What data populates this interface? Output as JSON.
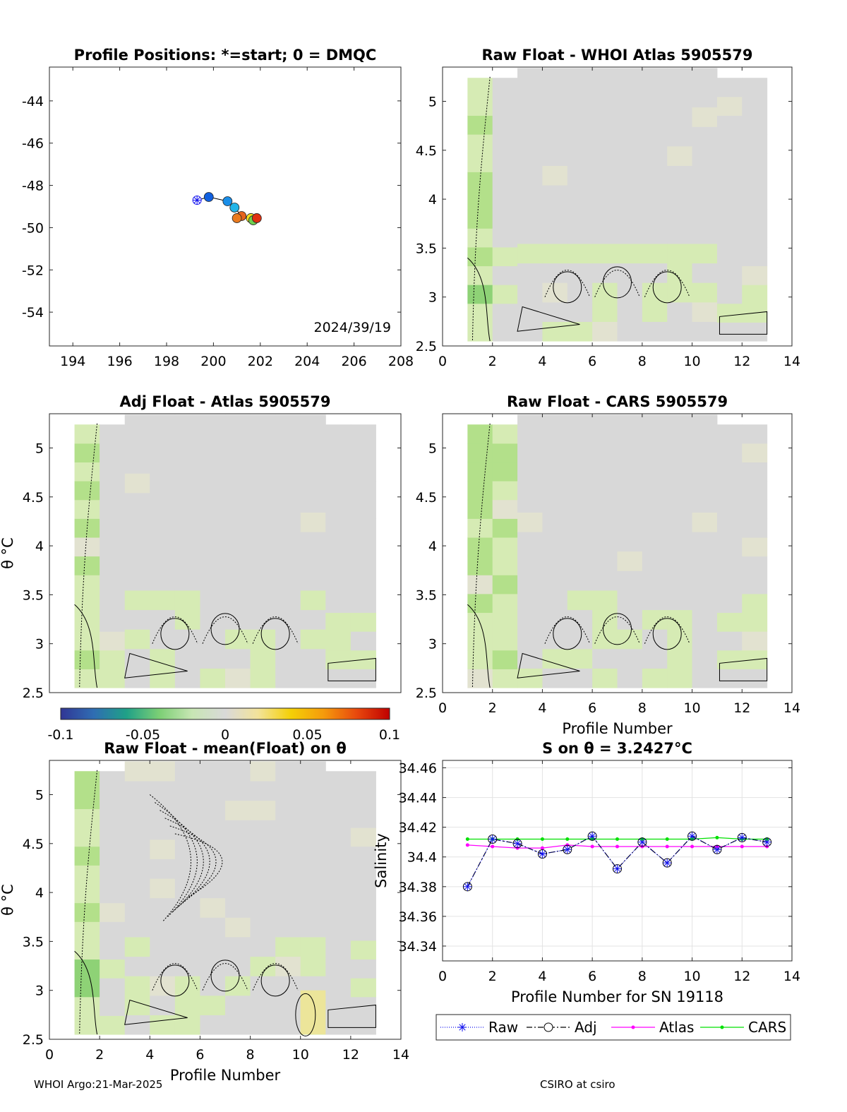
{
  "footer": {
    "left": "WHOI Argo:21-Mar-2025",
    "right": "CSIRO at csiro"
  },
  "colors": {
    "grey": "#d8d8d8",
    "green_light": "#d6ebb4",
    "green_mid": "#b3e08a",
    "green_dark": "#8ed276",
    "yellow_light": "#ece59a",
    "raw": "#1010ee",
    "adj": "#000000",
    "atlas": "#ff00ff",
    "cars": "#00e000"
  },
  "colorbar": {
    "ticks": [
      "-0.1",
      "-0.05",
      "0",
      "0.05",
      "0.1"
    ],
    "stops": [
      "#313695",
      "#2f6db3",
      "#1fa187",
      "#7ccf75",
      "#c8e6b4",
      "#d9d9d9",
      "#f3e39a",
      "#f4d006",
      "#f59a0c",
      "#e8480d",
      "#c00000"
    ]
  },
  "chart_data": [
    {
      "type": "scatter",
      "title": "Profile Positions: *=start; 0 = DMQC",
      "xlim": [
        193,
        208
      ],
      "ylim": [
        -55.6,
        -42.4
      ],
      "xticks": [
        194,
        196,
        198,
        200,
        202,
        204,
        206,
        208
      ],
      "yticks": [
        -44,
        -46,
        -48,
        -50,
        -52,
        -54
      ],
      "annotation": "2024/39/19",
      "start": {
        "x": 199.3,
        "y": -48.7
      },
      "points": [
        {
          "x": 199.8,
          "y": -48.55,
          "color": "#1060e0"
        },
        {
          "x": 200.6,
          "y": -48.75,
          "color": "#1a8ee8"
        },
        {
          "x": 200.9,
          "y": -49.05,
          "color": "#22b5e8"
        },
        {
          "x": 201.2,
          "y": -49.45,
          "color": "#e6641e"
        },
        {
          "x": 201.0,
          "y": -49.55,
          "color": "#ea7a1e"
        },
        {
          "x": 201.6,
          "y": -49.55,
          "color": "#f4e01e"
        },
        {
          "x": 201.7,
          "y": -49.65,
          "color": "#70d050"
        },
        {
          "x": 201.85,
          "y": -49.55,
          "color": "#e03010"
        }
      ]
    },
    {
      "type": "heatmap",
      "title": "Raw Float - WHOI Atlas  5905579",
      "xlim": [
        0,
        14
      ],
      "ylim": [
        2.5,
        5.35
      ],
      "xticks": [
        0,
        2,
        4,
        6,
        8,
        10,
        12,
        14
      ],
      "yticks": [
        "2.5",
        "3",
        "3.5",
        "4",
        "4.5",
        "5"
      ],
      "xlabel": "",
      "ylabel": ""
    },
    {
      "type": "heatmap",
      "title": "Adj Float - Atlas  5905579",
      "xlim": [
        0,
        14
      ],
      "ylim": [
        2.5,
        5.35
      ],
      "yticks": [
        "2.5",
        "3",
        "3.5",
        "4",
        "4.5",
        "5"
      ],
      "ylabel": "θ °C"
    },
    {
      "type": "heatmap",
      "title": "Raw Float - CARS  5905579",
      "xlim": [
        0,
        14
      ],
      "ylim": [
        2.5,
        5.35
      ],
      "xticks": [
        0,
        2,
        4,
        6,
        8,
        10,
        12,
        14
      ],
      "yticks": [
        "2.5",
        "3",
        "3.5",
        "4",
        "4.5",
        "5"
      ],
      "xlabel": "Profile Number"
    },
    {
      "type": "heatmap",
      "title": "Raw Float - mean(Float) on θ",
      "xlim": [
        0,
        14
      ],
      "ylim": [
        2.5,
        5.35
      ],
      "xticks": [
        0,
        2,
        4,
        6,
        8,
        10,
        12,
        14
      ],
      "yticks": [
        "2.5",
        "3",
        "3.5",
        "4",
        "4.5",
        "5"
      ],
      "xlabel": "Profile Number",
      "ylabel": "θ °C"
    },
    {
      "type": "line",
      "title": "S on θ = 3.2427°C",
      "xlabel": "Profile Number for SN 19118",
      "ylabel": "Salinity",
      "xlim": [
        0,
        14
      ],
      "ylim": [
        34.33,
        34.465
      ],
      "xticks": [
        0,
        2,
        4,
        6,
        8,
        10,
        12,
        14
      ],
      "yticks": [
        "34.34",
        "34.36",
        "34.38",
        "34.4",
        "34.42",
        "34.44",
        "34.46"
      ],
      "grid": true,
      "legend_position": "bottom-outside",
      "x": [
        1,
        2,
        3,
        4,
        5,
        6,
        7,
        8,
        9,
        10,
        11,
        12,
        13
      ],
      "series": [
        {
          "name": "Raw",
          "values": [
            34.38,
            34.412,
            34.409,
            34.402,
            34.405,
            34.414,
            34.392,
            34.41,
            34.396,
            34.414,
            34.405,
            34.413,
            34.41
          ]
        },
        {
          "name": "Adj",
          "values": [
            34.38,
            34.412,
            34.409,
            34.402,
            34.405,
            34.414,
            34.392,
            34.41,
            34.396,
            34.414,
            34.405,
            34.413,
            34.41
          ]
        },
        {
          "name": "Atlas",
          "values": [
            34.408,
            34.407,
            34.406,
            34.406,
            34.408,
            34.407,
            34.407,
            34.407,
            34.407,
            34.407,
            34.407,
            34.407,
            34.407
          ]
        },
        {
          "name": "CARS",
          "values": [
            34.412,
            34.412,
            34.412,
            34.412,
            34.412,
            34.412,
            34.412,
            34.412,
            34.412,
            34.412,
            34.413,
            34.412,
            34.412
          ]
        }
      ]
    }
  ]
}
